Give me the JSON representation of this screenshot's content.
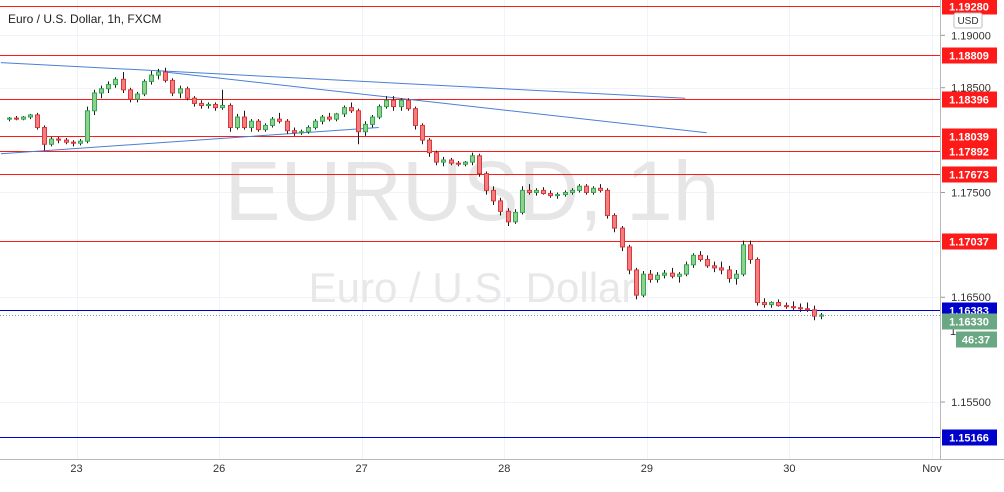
{
  "chart_data": {
    "type": "candlestick",
    "title": "Euro / U.S. Dollar, 1h, FXCM",
    "watermark_symbol": "EURUSD, 1h",
    "watermark_name": "Euro / U.S. Dollar",
    "currency_label": "USD",
    "ylim": [
      1.1488,
      1.1929
    ],
    "price_ticks": [
      "1.19000",
      "1.18500",
      "1.17500",
      "1.16500",
      "1.15500"
    ],
    "x_ticks": [
      {
        "label": "23",
        "t": 4
      },
      {
        "label": "26",
        "t": 24
      },
      {
        "label": "27",
        "t": 44
      },
      {
        "label": "28",
        "t": 64
      },
      {
        "label": "29",
        "t": 84
      },
      {
        "label": "30",
        "t": 104
      },
      {
        "label": "Nov",
        "t": 124
      }
    ],
    "xlim": [
      -1,
      131
    ],
    "horizontal_levels": [
      {
        "price": 1.1928,
        "label": "1.19280",
        "color": "#ff1a1a"
      },
      {
        "price": 1.18809,
        "label": "1.18809",
        "color": "#ff1a1a"
      },
      {
        "price": 1.18396,
        "label": "1.18396",
        "color": "#ff1a1a"
      },
      {
        "price": 1.18039,
        "label": "1.18039",
        "color": "#ff1a1a"
      },
      {
        "price": 1.17892,
        "label": "1.17892",
        "color": "#ff1a1a"
      },
      {
        "price": 1.17673,
        "label": "1.17673",
        "color": "#ff1a1a"
      },
      {
        "price": 1.17037,
        "label": "1.17037",
        "color": "#ff1a1a"
      },
      {
        "price": 1.16383,
        "label": "1.16383",
        "color": "#0000cc"
      },
      {
        "price": 1.15166,
        "label": "1.15166",
        "color": "#0000cc"
      }
    ],
    "trendlines": [
      {
        "t1": -1,
        "p1": 1.1874,
        "t2": 95,
        "p2": 1.184
      },
      {
        "t1": 22,
        "p1": 1.1865,
        "t2": 98,
        "p2": 1.1807
      },
      {
        "t1": -1,
        "p1": 1.1787,
        "t2": 52,
        "p2": 1.1812
      }
    ],
    "current_price": {
      "price": 1.1633,
      "label": "1.16330",
      "countdown": "46:37",
      "color": "#6aa884"
    },
    "partial_tick_label": "1",
    "partial_tick_price": 1.1618,
    "candles": [
      [
        1.182,
        1.1822,
        1.1818,
        1.1821
      ],
      [
        1.1821,
        1.1823,
        1.1819,
        1.182
      ],
      [
        1.182,
        1.1823,
        1.1819,
        1.1822
      ],
      [
        1.1822,
        1.1825,
        1.182,
        1.1824
      ],
      [
        1.1824,
        1.1826,
        1.181,
        1.1812
      ],
      [
        1.1812,
        1.1814,
        1.179,
        1.1796
      ],
      [
        1.1796,
        1.1803,
        1.1794,
        1.1801
      ],
      [
        1.1801,
        1.1803,
        1.1797,
        1.18
      ],
      [
        1.18,
        1.1802,
        1.1796,
        1.1798
      ],
      [
        1.1798,
        1.18,
        1.1794,
        1.1797
      ],
      [
        1.1797,
        1.1801,
        1.1795,
        1.1799
      ],
      [
        1.1799,
        1.1832,
        1.1797,
        1.1828
      ],
      [
        1.1828,
        1.1848,
        1.1824,
        1.1845
      ],
      [
        1.1845,
        1.1852,
        1.184,
        1.1849
      ],
      [
        1.1849,
        1.1856,
        1.1845,
        1.1853
      ],
      [
        1.1853,
        1.186,
        1.185,
        1.1858
      ],
      [
        1.1858,
        1.1865,
        1.1845,
        1.1848
      ],
      [
        1.1848,
        1.185,
        1.1836,
        1.1839
      ],
      [
        1.1839,
        1.1846,
        1.1836,
        1.1844
      ],
      [
        1.1844,
        1.1858,
        1.1842,
        1.1856
      ],
      [
        1.1856,
        1.1866,
        1.1853,
        1.1862
      ],
      [
        1.1862,
        1.1868,
        1.1858,
        1.1865
      ],
      [
        1.1865,
        1.1869,
        1.1855,
        1.1857
      ],
      [
        1.1857,
        1.1859,
        1.1842,
        1.1845
      ],
      [
        1.1845,
        1.1852,
        1.184,
        1.1849
      ],
      [
        1.1849,
        1.1851,
        1.1838,
        1.184
      ],
      [
        1.184,
        1.1842,
        1.1832,
        1.1835
      ],
      [
        1.1835,
        1.1838,
        1.183,
        1.1833
      ],
      [
        1.1833,
        1.1836,
        1.183,
        1.1834
      ],
      [
        1.1834,
        1.1836,
        1.1828,
        1.1831
      ],
      [
        1.1831,
        1.1848,
        1.1829,
        1.1833
      ],
      [
        1.1833,
        1.1835,
        1.1808,
        1.1812
      ],
      [
        1.1812,
        1.1825,
        1.181,
        1.1822
      ],
      [
        1.1822,
        1.1828,
        1.181,
        1.1812
      ],
      [
        1.1812,
        1.182,
        1.1808,
        1.1818
      ],
      [
        1.1818,
        1.182,
        1.1808,
        1.181
      ],
      [
        1.181,
        1.1816,
        1.1808,
        1.1814
      ],
      [
        1.1814,
        1.1822,
        1.1812,
        1.182
      ],
      [
        1.182,
        1.1826,
        1.1816,
        1.1818
      ],
      [
        1.1818,
        1.182,
        1.1806,
        1.1809
      ],
      [
        1.1809,
        1.1812,
        1.1804,
        1.1807
      ],
      [
        1.1807,
        1.181,
        1.1805,
        1.1808
      ],
      [
        1.1808,
        1.1814,
        1.1806,
        1.1812
      ],
      [
        1.1812,
        1.182,
        1.181,
        1.1818
      ],
      [
        1.1818,
        1.1824,
        1.1815,
        1.1822
      ],
      [
        1.1822,
        1.1826,
        1.1818,
        1.182
      ],
      [
        1.182,
        1.1826,
        1.1818,
        1.1825
      ],
      [
        1.1825,
        1.1833,
        1.1822,
        1.1831
      ],
      [
        1.1831,
        1.1836,
        1.1826,
        1.1828
      ],
      [
        1.1828,
        1.183,
        1.1796,
        1.1808
      ],
      [
        1.1808,
        1.1818,
        1.1804,
        1.1815
      ],
      [
        1.1815,
        1.1824,
        1.1812,
        1.1822
      ],
      [
        1.1822,
        1.1834,
        1.182,
        1.1832
      ],
      [
        1.1832,
        1.1842,
        1.183,
        1.1838
      ],
      [
        1.1838,
        1.1842,
        1.1828,
        1.1832
      ],
      [
        1.1832,
        1.184,
        1.1828,
        1.1838
      ],
      [
        1.1838,
        1.184,
        1.1828,
        1.183
      ],
      [
        1.183,
        1.1832,
        1.181,
        1.1814
      ],
      [
        1.1814,
        1.1816,
        1.1796,
        1.18
      ],
      [
        1.18,
        1.1802,
        1.1784,
        1.1788
      ],
      [
        1.1788,
        1.179,
        1.1776,
        1.1779
      ],
      [
        1.1779,
        1.1784,
        1.1775,
        1.1781
      ],
      [
        1.1781,
        1.1783,
        1.1776,
        1.1778
      ],
      [
        1.1778,
        1.178,
        1.1775,
        1.1777
      ],
      [
        1.1777,
        1.178,
        1.1775,
        1.1779
      ],
      [
        1.1779,
        1.1788,
        1.1776,
        1.1785
      ],
      [
        1.1785,
        1.1787,
        1.1765,
        1.1768
      ],
      [
        1.1768,
        1.177,
        1.1748,
        1.1752
      ],
      [
        1.1752,
        1.1756,
        1.1738,
        1.1742
      ],
      [
        1.1742,
        1.1745,
        1.1728,
        1.1732
      ],
      [
        1.1732,
        1.1735,
        1.1718,
        1.1722
      ],
      [
        1.1722,
        1.1734,
        1.172,
        1.1731
      ],
      [
        1.1731,
        1.1756,
        1.1729,
        1.1752
      ],
      [
        1.1752,
        1.1758,
        1.1748,
        1.175
      ],
      [
        1.175,
        1.1754,
        1.1747,
        1.1752
      ],
      [
        1.1752,
        1.1755,
        1.1748,
        1.1749
      ],
      [
        1.1749,
        1.1752,
        1.1745,
        1.1747
      ],
      [
        1.1747,
        1.175,
        1.1744,
        1.1748
      ],
      [
        1.1748,
        1.1752,
        1.1746,
        1.175
      ],
      [
        1.175,
        1.1754,
        1.1748,
        1.1752
      ],
      [
        1.1752,
        1.1758,
        1.175,
        1.1756
      ],
      [
        1.1756,
        1.1758,
        1.1748,
        1.175
      ],
      [
        1.175,
        1.1756,
        1.1748,
        1.1754
      ],
      [
        1.1754,
        1.1758,
        1.175,
        1.1752
      ],
      [
        1.1752,
        1.1754,
        1.1725,
        1.1728
      ],
      [
        1.1728,
        1.173,
        1.1712,
        1.1716
      ],
      [
        1.1716,
        1.1718,
        1.1694,
        1.1698
      ],
      [
        1.1698,
        1.17,
        1.1672,
        1.1676
      ],
      [
        1.1676,
        1.1678,
        1.1648,
        1.1652
      ],
      [
        1.1652,
        1.1675,
        1.165,
        1.1672
      ],
      [
        1.1672,
        1.1676,
        1.1664,
        1.1667
      ],
      [
        1.1667,
        1.1674,
        1.1664,
        1.1671
      ],
      [
        1.1671,
        1.1676,
        1.1668,
        1.1673
      ],
      [
        1.1673,
        1.1678,
        1.1668,
        1.167
      ],
      [
        1.167,
        1.1674,
        1.1664,
        1.1672
      ],
      [
        1.1672,
        1.1684,
        1.167,
        1.1681
      ],
      [
        1.1681,
        1.1692,
        1.1678,
        1.169
      ],
      [
        1.169,
        1.1694,
        1.1684,
        1.1686
      ],
      [
        1.1686,
        1.169,
        1.1678,
        1.168
      ],
      [
        1.168,
        1.1684,
        1.1674,
        1.1678
      ],
      [
        1.1678,
        1.1684,
        1.1672,
        1.1676
      ],
      [
        1.1676,
        1.168,
        1.1664,
        1.1668
      ],
      [
        1.1668,
        1.1676,
        1.1662,
        1.1672
      ],
      [
        1.1672,
        1.1704,
        1.167,
        1.17
      ],
      [
        1.17,
        1.1704,
        1.1682,
        1.1686
      ],
      [
        1.1686,
        1.1688,
        1.1642,
        1.1645
      ],
      [
        1.1645,
        1.1649,
        1.164,
        1.1643
      ],
      [
        1.1643,
        1.1646,
        1.164,
        1.1645
      ],
      [
        1.1645,
        1.1648,
        1.1641,
        1.1642
      ],
      [
        1.1642,
        1.1645,
        1.1639,
        1.1641
      ],
      [
        1.1641,
        1.1646,
        1.1638,
        1.164
      ],
      [
        1.164,
        1.1644,
        1.1636,
        1.1639
      ],
      [
        1.1639,
        1.1645,
        1.1636,
        1.1638
      ],
      [
        1.1638,
        1.1642,
        1.1628,
        1.1632
      ],
      [
        1.1632,
        1.1635,
        1.1629,
        1.1633
      ]
    ]
  }
}
